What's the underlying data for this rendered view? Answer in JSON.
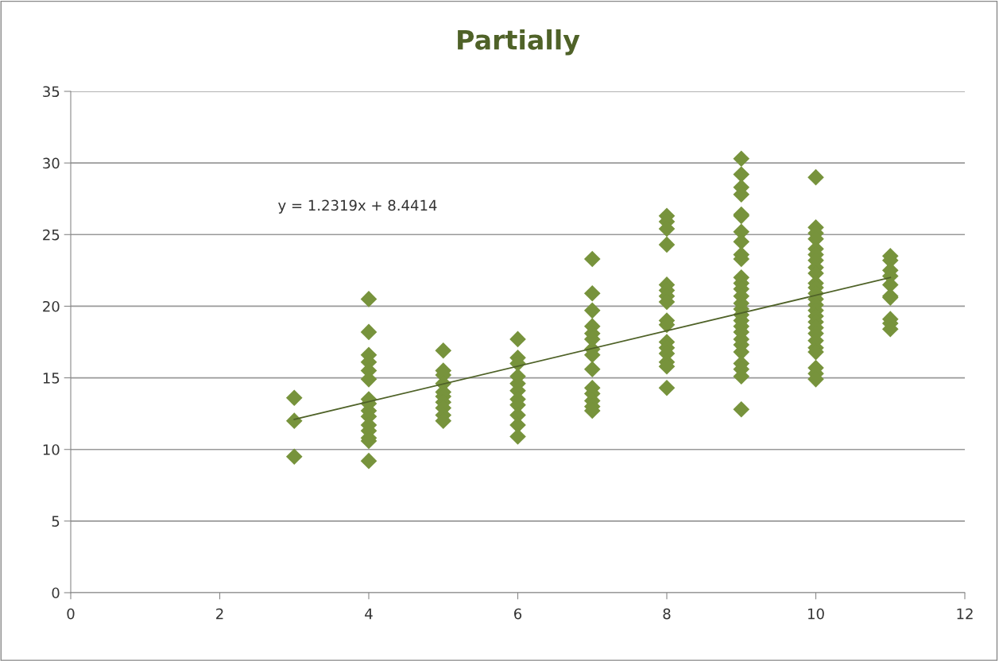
{
  "chart_data": {
    "type": "scatter",
    "title": "Partially",
    "xlim": [
      0,
      12
    ],
    "xticks": [
      0,
      2,
      4,
      6,
      8,
      10,
      12
    ],
    "ylim": [
      0,
      35
    ],
    "yticks": [
      0,
      5,
      10,
      15,
      20,
      25,
      30,
      35
    ],
    "grid": "y",
    "marker": "diamond",
    "annotations": [
      "y = 1.2319x + 8.4414"
    ],
    "series": [
      {
        "color": "#77933c",
        "x": [
          3,
          3,
          3,
          4,
          4,
          4,
          4,
          4,
          4,
          4,
          4,
          4,
          4,
          4,
          4,
          4,
          4,
          4,
          5,
          5,
          5,
          5,
          5,
          5,
          5,
          5,
          5,
          5,
          6,
          6,
          6,
          6,
          6,
          6,
          6,
          6,
          6,
          6,
          6,
          7,
          7,
          7,
          7,
          7,
          7,
          7,
          7,
          7,
          7,
          7,
          7,
          7,
          7,
          8,
          8,
          8,
          8,
          8,
          8,
          8,
          8,
          8,
          8,
          8,
          8,
          8,
          8,
          8,
          8,
          9,
          9,
          9,
          9,
          9,
          9,
          9,
          9,
          9,
          9,
          9,
          9,
          9,
          9,
          9,
          9,
          9,
          9,
          9,
          9,
          9,
          9,
          9,
          9,
          9,
          9,
          9,
          10,
          10,
          10,
          10,
          10,
          10,
          10,
          10,
          10,
          10,
          10,
          10,
          10,
          10,
          10,
          10,
          10,
          10,
          10,
          10,
          10,
          10,
          10,
          10,
          10,
          11,
          11,
          11,
          11,
          11,
          11,
          11,
          11,
          11,
          11
        ],
        "values": [
          13.6,
          12.0,
          9.5,
          20.5,
          18.2,
          16.6,
          16.1,
          15.5,
          14.9,
          13.5,
          13.2,
          12.7,
          12.3,
          11.7,
          11.3,
          10.8,
          10.6,
          9.2,
          16.9,
          15.5,
          15.2,
          14.6,
          14.0,
          13.7,
          13.3,
          12.9,
          12.4,
          12.0,
          17.7,
          16.4,
          16.0,
          15.1,
          14.6,
          14.1,
          13.5,
          13.1,
          12.4,
          11.7,
          10.9,
          23.3,
          20.9,
          19.7,
          18.6,
          18.1,
          17.7,
          17.0,
          16.6,
          15.6,
          14.3,
          13.9,
          13.4,
          13.0,
          12.7,
          26.3,
          25.9,
          25.4,
          24.3,
          21.5,
          21.1,
          20.7,
          20.3,
          19.0,
          18.7,
          17.5,
          17.1,
          16.7,
          16.1,
          15.8,
          14.3,
          30.3,
          29.2,
          28.3,
          27.8,
          26.4,
          26.3,
          25.2,
          24.5,
          23.6,
          23.3,
          22.0,
          21.6,
          21.2,
          20.7,
          20.2,
          19.8,
          19.4,
          19.0,
          18.6,
          18.2,
          17.7,
          17.3,
          16.8,
          16.0,
          15.6,
          15.1,
          12.8,
          29.0,
          25.5,
          25.1,
          24.7,
          24.0,
          23.6,
          23.2,
          22.7,
          22.3,
          21.6,
          21.3,
          20.9,
          20.5,
          20.1,
          19.7,
          19.3,
          18.9,
          18.5,
          18.1,
          17.6,
          17.1,
          16.8,
          15.7,
          15.3,
          14.9,
          23.5,
          23.2,
          22.5,
          22.1,
          21.5,
          20.7,
          20.6,
          19.1,
          18.8,
          18.4
        ]
      },
      {
        "type": "line",
        "color": "#4f6228",
        "marker": "none",
        "line_style": "solid",
        "x": [
          3,
          11
        ],
        "values": [
          12.1,
          22.0
        ]
      }
    ]
  }
}
